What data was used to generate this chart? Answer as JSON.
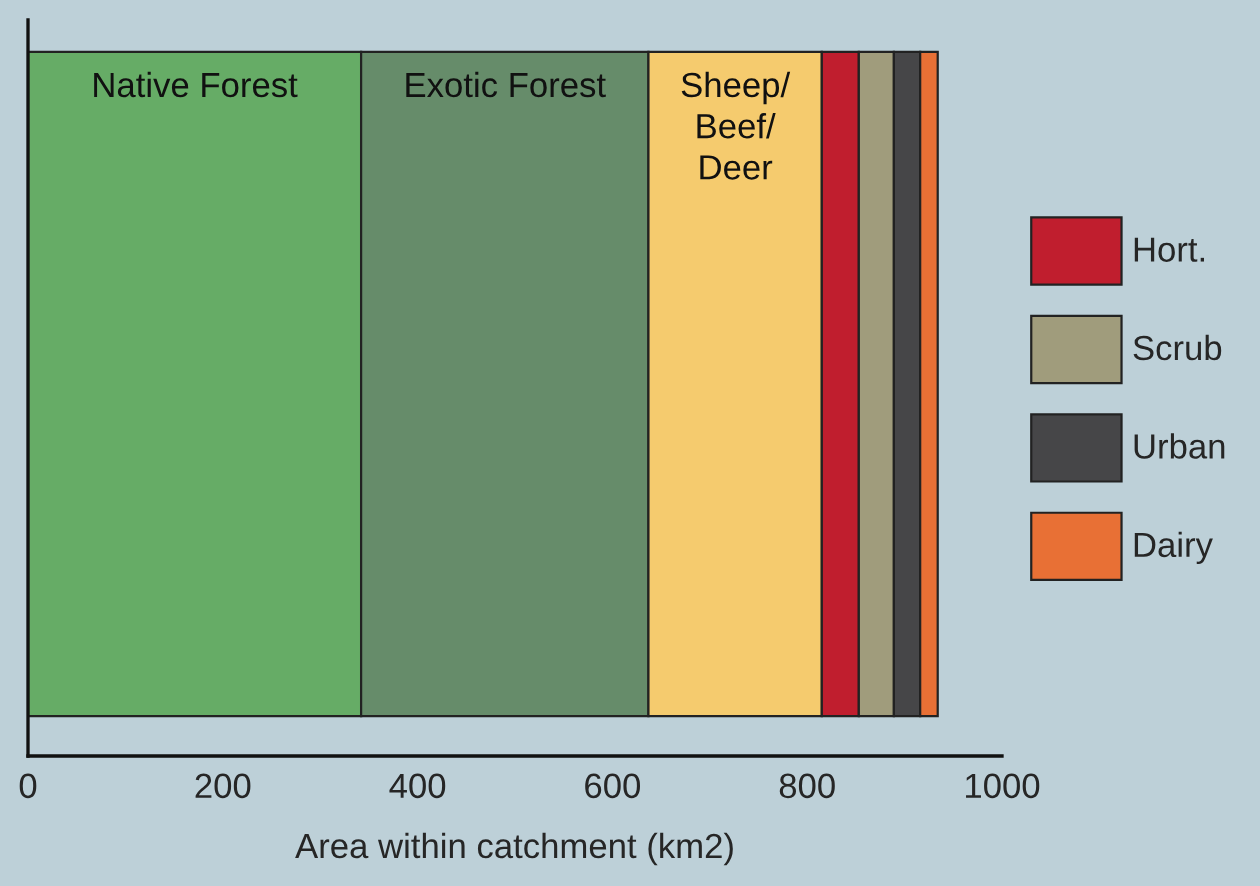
{
  "chart_data": {
    "type": "bar",
    "orientation": "horizontal",
    "stacked": true,
    "xlabel": "Area within catchment (km2)",
    "categories": [
      null
    ],
    "series": [
      {
        "name": "Native Forest",
        "color": "#66ac66",
        "values": [
          342
        ]
      },
      {
        "name": "Exotic Forest",
        "color": "#668c6a",
        "values": [
          295
        ]
      },
      {
        "name": "Sheep/\nBeef/\nDeer",
        "color": "#f5cb6e",
        "values": [
          178
        ]
      },
      {
        "name": "Hort.",
        "color": "#c01e2e",
        "values": [
          38
        ]
      },
      {
        "name": "Scrub",
        "color": "#a09c7c",
        "values": [
          36
        ]
      },
      {
        "name": "Urban",
        "color": "#464648",
        "values": [
          27
        ]
      },
      {
        "name": "Dairy",
        "color": "#e87035",
        "values": [
          18
        ]
      }
    ],
    "xlim": [
      0,
      1000
    ],
    "xticks": [
      0,
      200,
      400,
      600,
      800,
      1000
    ],
    "tick_labels": "x",
    "legend": "right",
    "grid": false
  }
}
